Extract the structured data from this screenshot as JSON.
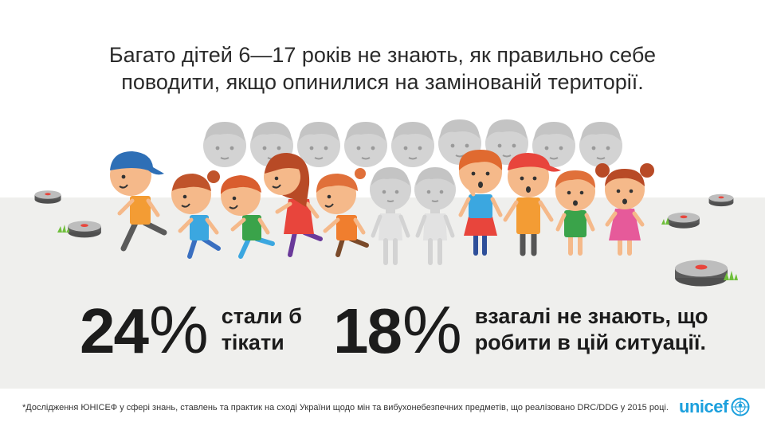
{
  "headline": {
    "line1": "Багато дітей 6—17 років не знають, як правильно себе",
    "line2": "поводити, якщо опинилися на замінованій території."
  },
  "stats": [
    {
      "number": "24",
      "percent_sign": "%",
      "text_line1": "стали б",
      "text_line2": "тікати"
    },
    {
      "number": "18",
      "percent_sign": "%",
      "text_line1": "взагалі не знають, що",
      "text_line2": "робити в цій ситуації."
    }
  ],
  "footnote": "*Дослідження ЮНІСЕФ у сфері знань, ставлень та практик на сході України щодо мін та вибухонебезпечних предметів, що реалізовано DRC/DDG у 2015 році.",
  "logo": {
    "word": "unicef"
  },
  "colors": {
    "ground": "#efefed",
    "text": "#1c1c1c",
    "brand": "#1ca0dd",
    "ghost": "#d0d0d0",
    "mine": "#5a5a5a",
    "mine_light": "#bdbdbd",
    "button": "#e8453c",
    "grass": "#6fbf3b"
  },
  "illustration": {
    "children_count": 13,
    "ghost_children_count": 11,
    "mines_count": 6
  }
}
